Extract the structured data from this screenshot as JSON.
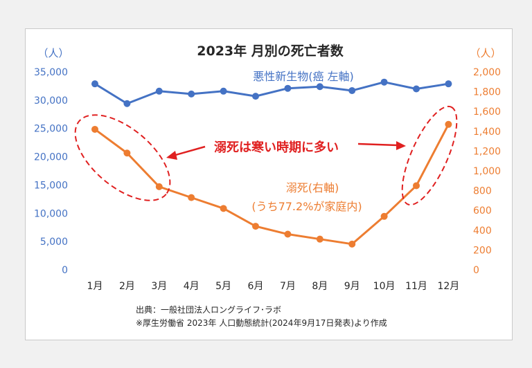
{
  "chart_data": {
    "type": "line",
    "title": "2023年 月別の死亡者数",
    "categories": [
      "1月",
      "2月",
      "3月",
      "4月",
      "5月",
      "6月",
      "7月",
      "8月",
      "9月",
      "10月",
      "11月",
      "12月"
    ],
    "left_axis": {
      "unit_label": "（人）",
      "ylim": [
        0,
        35000
      ],
      "ticks": [
        0,
        5000,
        10000,
        15000,
        20000,
        25000,
        30000,
        35000
      ],
      "tick_labels": [
        "0",
        "5,000",
        "10,000",
        "15,000",
        "20,000",
        "25,000",
        "30,000",
        "35,000"
      ],
      "color": "#4472c4"
    },
    "right_axis": {
      "unit_label": "（人）",
      "ylim": [
        0,
        2000
      ],
      "ticks": [
        0,
        200,
        400,
        600,
        800,
        1000,
        1200,
        1400,
        1600,
        1800,
        2000
      ],
      "tick_labels": [
        "0",
        "200",
        "400",
        "600",
        "800",
        "1,000",
        "1,200",
        "1,400",
        "1,600",
        "1,800",
        "2,000"
      ],
      "color": "#ed7d31"
    },
    "series": [
      {
        "name": "悪性新生物(癌 左軸)",
        "axis": "left",
        "color": "#4472c4",
        "values": [
          32900,
          29400,
          31600,
          31100,
          31600,
          30700,
          32100,
          32400,
          31700,
          33200,
          32000,
          32900
        ]
      },
      {
        "name": "溺死(右軸)",
        "subtitle": "(うち77.2%が家庭内)",
        "axis": "right",
        "color": "#ed7d31",
        "values": [
          1420,
          1180,
          840,
          730,
          620,
          440,
          360,
          310,
          260,
          540,
          850,
          1470
        ]
      }
    ],
    "annotation": {
      "text": "溺死は寒い時期に多い",
      "color": "#e02020"
    },
    "grid": false
  },
  "source": {
    "line1": "出典：一般社団法人ロングライフ･ラボ",
    "line2": "※厚生労働省 2023年 人口動態統計(2024年9月17日発表)より作成"
  }
}
